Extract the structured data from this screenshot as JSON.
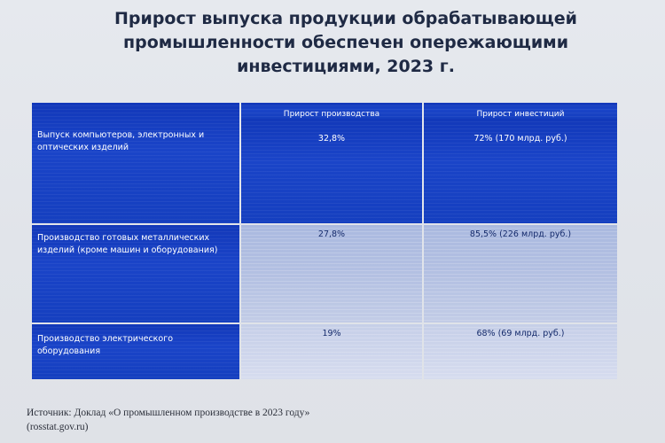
{
  "slide": {
    "title_lines": [
      "Прирост выпуска продукции обрабатывающей",
      "промышленности обеспечен опережающими",
      "инвестициями, 2023 г."
    ],
    "table": {
      "headers": [
        "",
        "Прирост производства",
        "Прирост инвестиций"
      ],
      "rows": [
        {
          "label": "Выпуск компьютеров, электронных и оптических изделий",
          "production": "32,8%",
          "investment": "72% (170 млрд. руб.)"
        },
        {
          "label": "Производство готовых металлических изделий (кроме машин и оборудования)",
          "production": "27,8%",
          "investment": "85,5% (226 млрд. руб.)"
        },
        {
          "label": "Производство электрического оборудования",
          "production": "19%",
          "investment": "68% (69 млрд. руб.)"
        }
      ]
    },
    "source_lines": [
      "Источник: Доклад «О промышленном производстве в 2023 году»",
      "(rosstat.gov.ru)"
    ],
    "colors": {
      "dark_cell": "#1a44c8",
      "light_cell": "#b3c0e2",
      "title_text": "#1f2a44"
    }
  }
}
